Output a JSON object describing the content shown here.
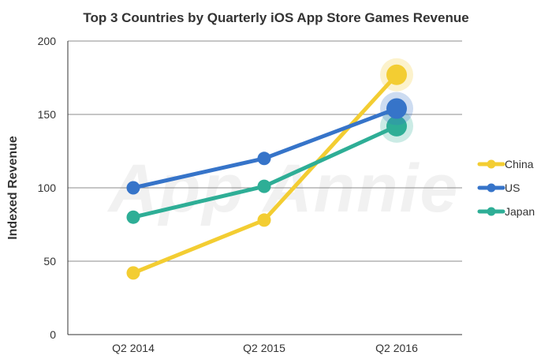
{
  "chart_data": {
    "type": "line",
    "title": "Top 3 Countries by Quarterly iOS App Store Games Revenue",
    "xlabel": "",
    "ylabel": "Indexed Revenue",
    "categories": [
      "Q2 2014",
      "Q2 2015",
      "Q2 2016"
    ],
    "ylim": [
      0,
      200
    ],
    "yticks": [
      0,
      50,
      100,
      150,
      200
    ],
    "grid": true,
    "legend_position": "right",
    "watermark": "App Annie",
    "series": [
      {
        "name": "China",
        "color": "#f3cd32",
        "values": [
          42,
          78,
          177
        ]
      },
      {
        "name": "US",
        "color": "#3674c9",
        "values": [
          100,
          120,
          154
        ]
      },
      {
        "name": "Japan",
        "color": "#2eae96",
        "values": [
          80,
          101,
          142
        ]
      }
    ]
  }
}
